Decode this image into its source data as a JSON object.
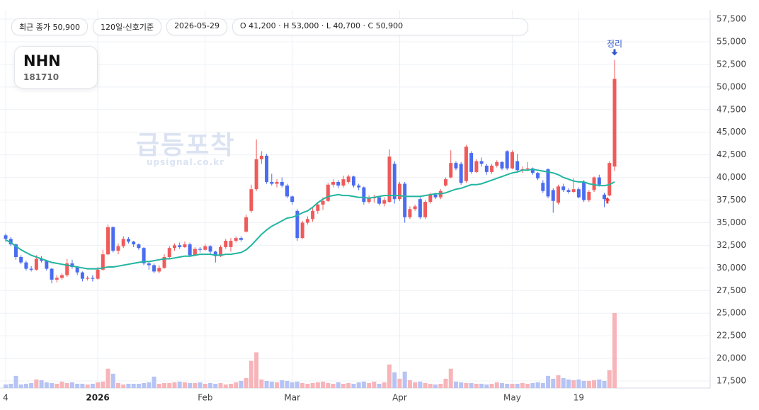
{
  "header": {
    "chips": [
      "최근 종가 50,900",
      "120일·신호기준",
      "2026-05-29",
      "O 41,200 · H 53,000 · L 40,700 · C 50,900"
    ],
    "symbol": "NHN",
    "code": "181710",
    "watermark": "급등포착",
    "watermark_sub": "upsignal.co.kr"
  },
  "chart_data": {
    "type": "candlestick",
    "signal_label": "정리",
    "up_color": "#f05a5a",
    "down_color": "#4a6cf0",
    "up_volume_color": "#f7b4b9",
    "down_volume_color": "#b6c3f4",
    "ma_color": "#22b5a0",
    "grid": true,
    "ylim": [
      17500,
      57500
    ],
    "yticks": [
      {
        "value": 17500,
        "label": "17,500"
      },
      {
        "value": 20000,
        "label": "20,000"
      },
      {
        "value": 22500,
        "label": "22,500"
      },
      {
        "value": 25000,
        "label": "25,000"
      },
      {
        "value": 27500,
        "label": "27,500"
      },
      {
        "value": 30000,
        "label": "30,000"
      },
      {
        "value": 32500,
        "label": "32,500"
      },
      {
        "value": 35000,
        "label": "35,000"
      },
      {
        "value": 37500,
        "label": "37,500"
      },
      {
        "value": 40000,
        "label": "40,000"
      },
      {
        "value": 42500,
        "label": "42,500"
      },
      {
        "value": 45000,
        "label": "45,000"
      },
      {
        "value": 47500,
        "label": "47,500"
      },
      {
        "value": 50000,
        "label": "50,000"
      },
      {
        "value": 52500,
        "label": "52,500"
      },
      {
        "value": 55000,
        "label": "55,000"
      },
      {
        "value": 57500,
        "label": "57,500"
      }
    ],
    "categories": [
      "4",
      null,
      null,
      null,
      null,
      null,
      null,
      null,
      null,
      null,
      null,
      null,
      null,
      null,
      null,
      null,
      null,
      null,
      "2026",
      null,
      null,
      null,
      null,
      null,
      null,
      null,
      null,
      null,
      null,
      null,
      null,
      null,
      null,
      null,
      null,
      null,
      null,
      null,
      null,
      "Feb",
      null,
      null,
      null,
      null,
      null,
      null,
      null,
      null,
      null,
      null,
      null,
      null,
      null,
      null,
      null,
      null,
      "Mar",
      null,
      null,
      null,
      null,
      null,
      null,
      null,
      null,
      null,
      null,
      null,
      null,
      null,
      null,
      null,
      null,
      null,
      null,
      null,
      null,
      "Apr",
      null,
      null,
      null,
      null,
      null,
      null,
      null,
      null,
      null,
      null,
      null,
      null,
      null,
      null,
      null,
      null,
      null,
      null,
      null,
      null,
      null,
      "May",
      null,
      null,
      null,
      null,
      null,
      null,
      null,
      null,
      null,
      null,
      null,
      null,
      "19",
      null,
      null,
      null,
      null,
      null,
      null,
      null
    ],
    "candles": [
      [
        33600,
        33800,
        32900,
        33200
      ],
      [
        33200,
        33400,
        32400,
        32600
      ],
      [
        32600,
        32700,
        30900,
        31200
      ],
      [
        31200,
        31400,
        30400,
        30600
      ],
      [
        30600,
        30800,
        29700,
        29900
      ],
      [
        29900,
        30200,
        29600,
        29800
      ],
      [
        29800,
        31400,
        29700,
        31000
      ],
      [
        31000,
        31300,
        30600,
        30800
      ],
      [
        30800,
        30900,
        29700,
        29900
      ],
      [
        29900,
        30000,
        28300,
        28700
      ],
      [
        28700,
        29200,
        28400,
        28900
      ],
      [
        28900,
        29400,
        28700,
        29200
      ],
      [
        29200,
        31000,
        29000,
        30500
      ],
      [
        30500,
        30900,
        29900,
        30100
      ],
      [
        30100,
        30200,
        29200,
        29500
      ],
      [
        29500,
        29600,
        28500,
        28800
      ],
      [
        28800,
        29100,
        28600,
        28900
      ],
      [
        28900,
        29200,
        28500,
        28800
      ],
      [
        28800,
        30100,
        28700,
        29800
      ],
      [
        29800,
        32000,
        29700,
        31500
      ],
      [
        31500,
        34800,
        31400,
        34500
      ],
      [
        34500,
        34600,
        31700,
        31900
      ],
      [
        31900,
        32700,
        31500,
        32400
      ],
      [
        32400,
        33500,
        32200,
        33200
      ],
      [
        33200,
        33400,
        32700,
        32900
      ],
      [
        32900,
        33000,
        32300,
        32600
      ],
      [
        32600,
        32700,
        32000,
        32200
      ],
      [
        32200,
        32300,
        30300,
        30500
      ],
      [
        30500,
        30700,
        29800,
        30300
      ],
      [
        30300,
        30500,
        29400,
        29600
      ],
      [
        29600,
        30300,
        29400,
        30000
      ],
      [
        30000,
        31500,
        29900,
        31200
      ],
      [
        31200,
        32400,
        31000,
        32200
      ],
      [
        32200,
        32700,
        31900,
        32500
      ],
      [
        32500,
        32800,
        32100,
        32300
      ],
      [
        32300,
        32900,
        32200,
        32600
      ],
      [
        32600,
        32800,
        31200,
        31400
      ],
      [
        31400,
        32300,
        31300,
        32100
      ],
      [
        32100,
        32300,
        31700,
        32000
      ],
      [
        32000,
        32600,
        31900,
        32400
      ],
      [
        32400,
        32500,
        31600,
        31800
      ],
      [
        31800,
        31900,
        30600,
        31300
      ],
      [
        31300,
        32500,
        31200,
        32300
      ],
      [
        32300,
        33200,
        32100,
        33000
      ],
      [
        32300,
        33300,
        31800,
        33000
      ],
      [
        33000,
        33500,
        32800,
        33300
      ],
      [
        33300,
        33500,
        32900,
        33100
      ],
      [
        34000,
        35900,
        33900,
        35600
      ],
      [
        36300,
        39200,
        36100,
        38700
      ],
      [
        38700,
        44200,
        38500,
        42000
      ],
      [
        42000,
        42900,
        41500,
        42400
      ],
      [
        42400,
        42600,
        39300,
        39500
      ],
      [
        39500,
        40400,
        39100,
        39300
      ],
      [
        39300,
        39800,
        38900,
        39500
      ],
      [
        39500,
        40000,
        38900,
        39100
      ],
      [
        39100,
        39300,
        37700,
        37900
      ],
      [
        37900,
        38000,
        37000,
        37300
      ],
      [
        36300,
        36500,
        33000,
        33300
      ],
      [
        33300,
        35200,
        33200,
        35000
      ],
      [
        35000,
        35700,
        34800,
        35400
      ],
      [
        35400,
        36600,
        35100,
        36300
      ],
      [
        36300,
        37300,
        36000,
        37000
      ],
      [
        37000,
        37800,
        36400,
        37400
      ],
      [
        37400,
        39400,
        37300,
        39200
      ],
      [
        39200,
        39800,
        38900,
        39500
      ],
      [
        39500,
        39700,
        38800,
        39100
      ],
      [
        39100,
        40200,
        38900,
        39800
      ],
      [
        39500,
        40300,
        39300,
        40100
      ],
      [
        40100,
        40200,
        38900,
        39100
      ],
      [
        39100,
        39300,
        38600,
        38900
      ],
      [
        38900,
        39000,
        37000,
        37300
      ],
      [
        37300,
        38000,
        37100,
        37700
      ],
      [
        37700,
        38100,
        37200,
        37800
      ],
      [
        37800,
        37900,
        36900,
        37100
      ],
      [
        37100,
        37800,
        36800,
        37500
      ],
      [
        37300,
        43100,
        37200,
        42300
      ],
      [
        41500,
        41800,
        37100,
        37600
      ],
      [
        37600,
        39500,
        37400,
        39300
      ],
      [
        39300,
        39500,
        35000,
        35600
      ],
      [
        35600,
        36800,
        35400,
        36500
      ],
      [
        36500,
        37000,
        36300,
        36800
      ],
      [
        37600,
        37800,
        35400,
        35600
      ],
      [
        35600,
        37500,
        35400,
        37300
      ],
      [
        37300,
        38300,
        37100,
        38100
      ],
      [
        38100,
        38300,
        37600,
        37800
      ],
      [
        37800,
        38700,
        37600,
        38500
      ],
      [
        39100,
        40000,
        39000,
        39800
      ],
      [
        40000,
        43000,
        39900,
        41600
      ],
      [
        41600,
        41800,
        40800,
        41000
      ],
      [
        41500,
        41700,
        39200,
        39400
      ],
      [
        39600,
        43600,
        39400,
        43400
      ],
      [
        42700,
        42900,
        40400,
        40600
      ],
      [
        40600,
        42000,
        40500,
        41800
      ],
      [
        41800,
        42200,
        41200,
        41500
      ],
      [
        41300,
        41500,
        40300,
        40600
      ],
      [
        40600,
        41500,
        40400,
        41300
      ],
      [
        41300,
        41900,
        41100,
        41700
      ],
      [
        41700,
        41800,
        40800,
        41000
      ],
      [
        42900,
        43000,
        40800,
        41000
      ],
      [
        41000,
        43000,
        40900,
        42800
      ],
      [
        41800,
        42600,
        40600,
        40800
      ],
      [
        40800,
        41200,
        40500,
        40900
      ],
      [
        40900,
        41700,
        40700,
        41000
      ],
      [
        41000,
        41100,
        40300,
        40500
      ],
      [
        40500,
        40600,
        39700,
        39900
      ],
      [
        39400,
        39700,
        38300,
        38500
      ],
      [
        40900,
        41000,
        37700,
        37900
      ],
      [
        38600,
        38800,
        36100,
        37400
      ],
      [
        37200,
        39200,
        37000,
        39000
      ],
      [
        39000,
        39300,
        38400,
        38600
      ],
      [
        38600,
        38800,
        38200,
        38400
      ],
      [
        38400,
        39900,
        38300,
        38700
      ],
      [
        38700,
        38900,
        37700,
        37800
      ],
      [
        39500,
        39700,
        37300,
        37500
      ],
      [
        37500,
        38600,
        37300,
        38400
      ],
      [
        38600,
        40100,
        38400,
        40000
      ],
      [
        40000,
        40300,
        39000,
        39200
      ],
      [
        38100,
        38300,
        36700,
        37600
      ],
      [
        38000,
        41800,
        37900,
        41600
      ],
      [
        41200,
        53000,
        40700,
        50900
      ]
    ],
    "volume": [
      5,
      6,
      17,
      5,
      6,
      7,
      12,
      11,
      8,
      7,
      6,
      9,
      7,
      8,
      6,
      6,
      5,
      6,
      8,
      9,
      27,
      20,
      7,
      5,
      6,
      6,
      6,
      7,
      8,
      16,
      6,
      7,
      7,
      8,
      9,
      8,
      7,
      7,
      8,
      6,
      7,
      6,
      7,
      5,
      6,
      8,
      10,
      14,
      38,
      50,
      12,
      10,
      9,
      8,
      11,
      10,
      8,
      9,
      7,
      6,
      7,
      8,
      9,
      7,
      6,
      8,
      6,
      7,
      6,
      8,
      9,
      7,
      9,
      6,
      8,
      33,
      22,
      13,
      23,
      11,
      8,
      9,
      7,
      6,
      5,
      6,
      13,
      27,
      9,
      8,
      7,
      7,
      6,
      6,
      5,
      6,
      8,
      7,
      6,
      6,
      6,
      7,
      6,
      7,
      8,
      7,
      17,
      13,
      18,
      14,
      12,
      11,
      12,
      10,
      10,
      11,
      12,
      10,
      25,
      105
    ],
    "ma": [
      33100,
      32800,
      32400,
      32000,
      31700,
      31400,
      31200,
      31000,
      30800,
      30600,
      30500,
      30400,
      30300,
      30200,
      30100,
      30000,
      29900,
      29900,
      29900,
      30000,
      30100,
      30100,
      30200,
      30300,
      30400,
      30500,
      30600,
      30700,
      30700,
      30800,
      30900,
      31000,
      31000,
      31100,
      31200,
      31300,
      31300,
      31400,
      31500,
      31500,
      31500,
      31400,
      31400,
      31500,
      31500,
      31600,
      31700,
      32000,
      32500,
      33100,
      33700,
      34200,
      34600,
      34900,
      35200,
      35500,
      35600,
      35800,
      36100,
      36300,
      36700,
      37200,
      37600,
      37900,
      38000,
      38100,
      38000,
      38000,
      37900,
      37800,
      37800,
      37700,
      37800,
      37900,
      38000,
      38000,
      38000,
      38000,
      37900,
      37900,
      37900,
      37900,
      38000,
      38100,
      38200,
      38200,
      38300,
      38500,
      38700,
      38800,
      39000,
      39200,
      39200,
      39300,
      39500,
      39700,
      39900,
      40100,
      40300,
      40500,
      40600,
      40800,
      40800,
      40900,
      40800,
      40700,
      40600,
      40500,
      40300,
      40000,
      39800,
      39600,
      39500,
      39500,
      39300,
      39200,
      39100,
      39100,
      39200,
      39500
    ]
  }
}
